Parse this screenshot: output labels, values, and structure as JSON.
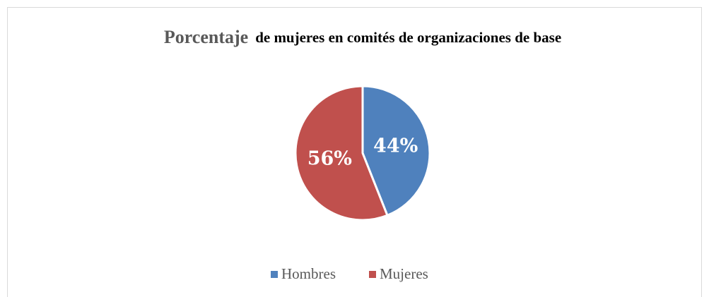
{
  "chart_data": {
    "type": "pie",
    "title": [
      "Porcentaje",
      "de mujeres en comités de organizaciones de base"
    ],
    "categories": [
      "Hombres",
      "Mujeres"
    ],
    "values": [
      44,
      56
    ],
    "value_labels": [
      "44%",
      "56%"
    ],
    "colors": [
      "#4f81bd",
      "#c0504d"
    ],
    "legend": "bottom"
  }
}
